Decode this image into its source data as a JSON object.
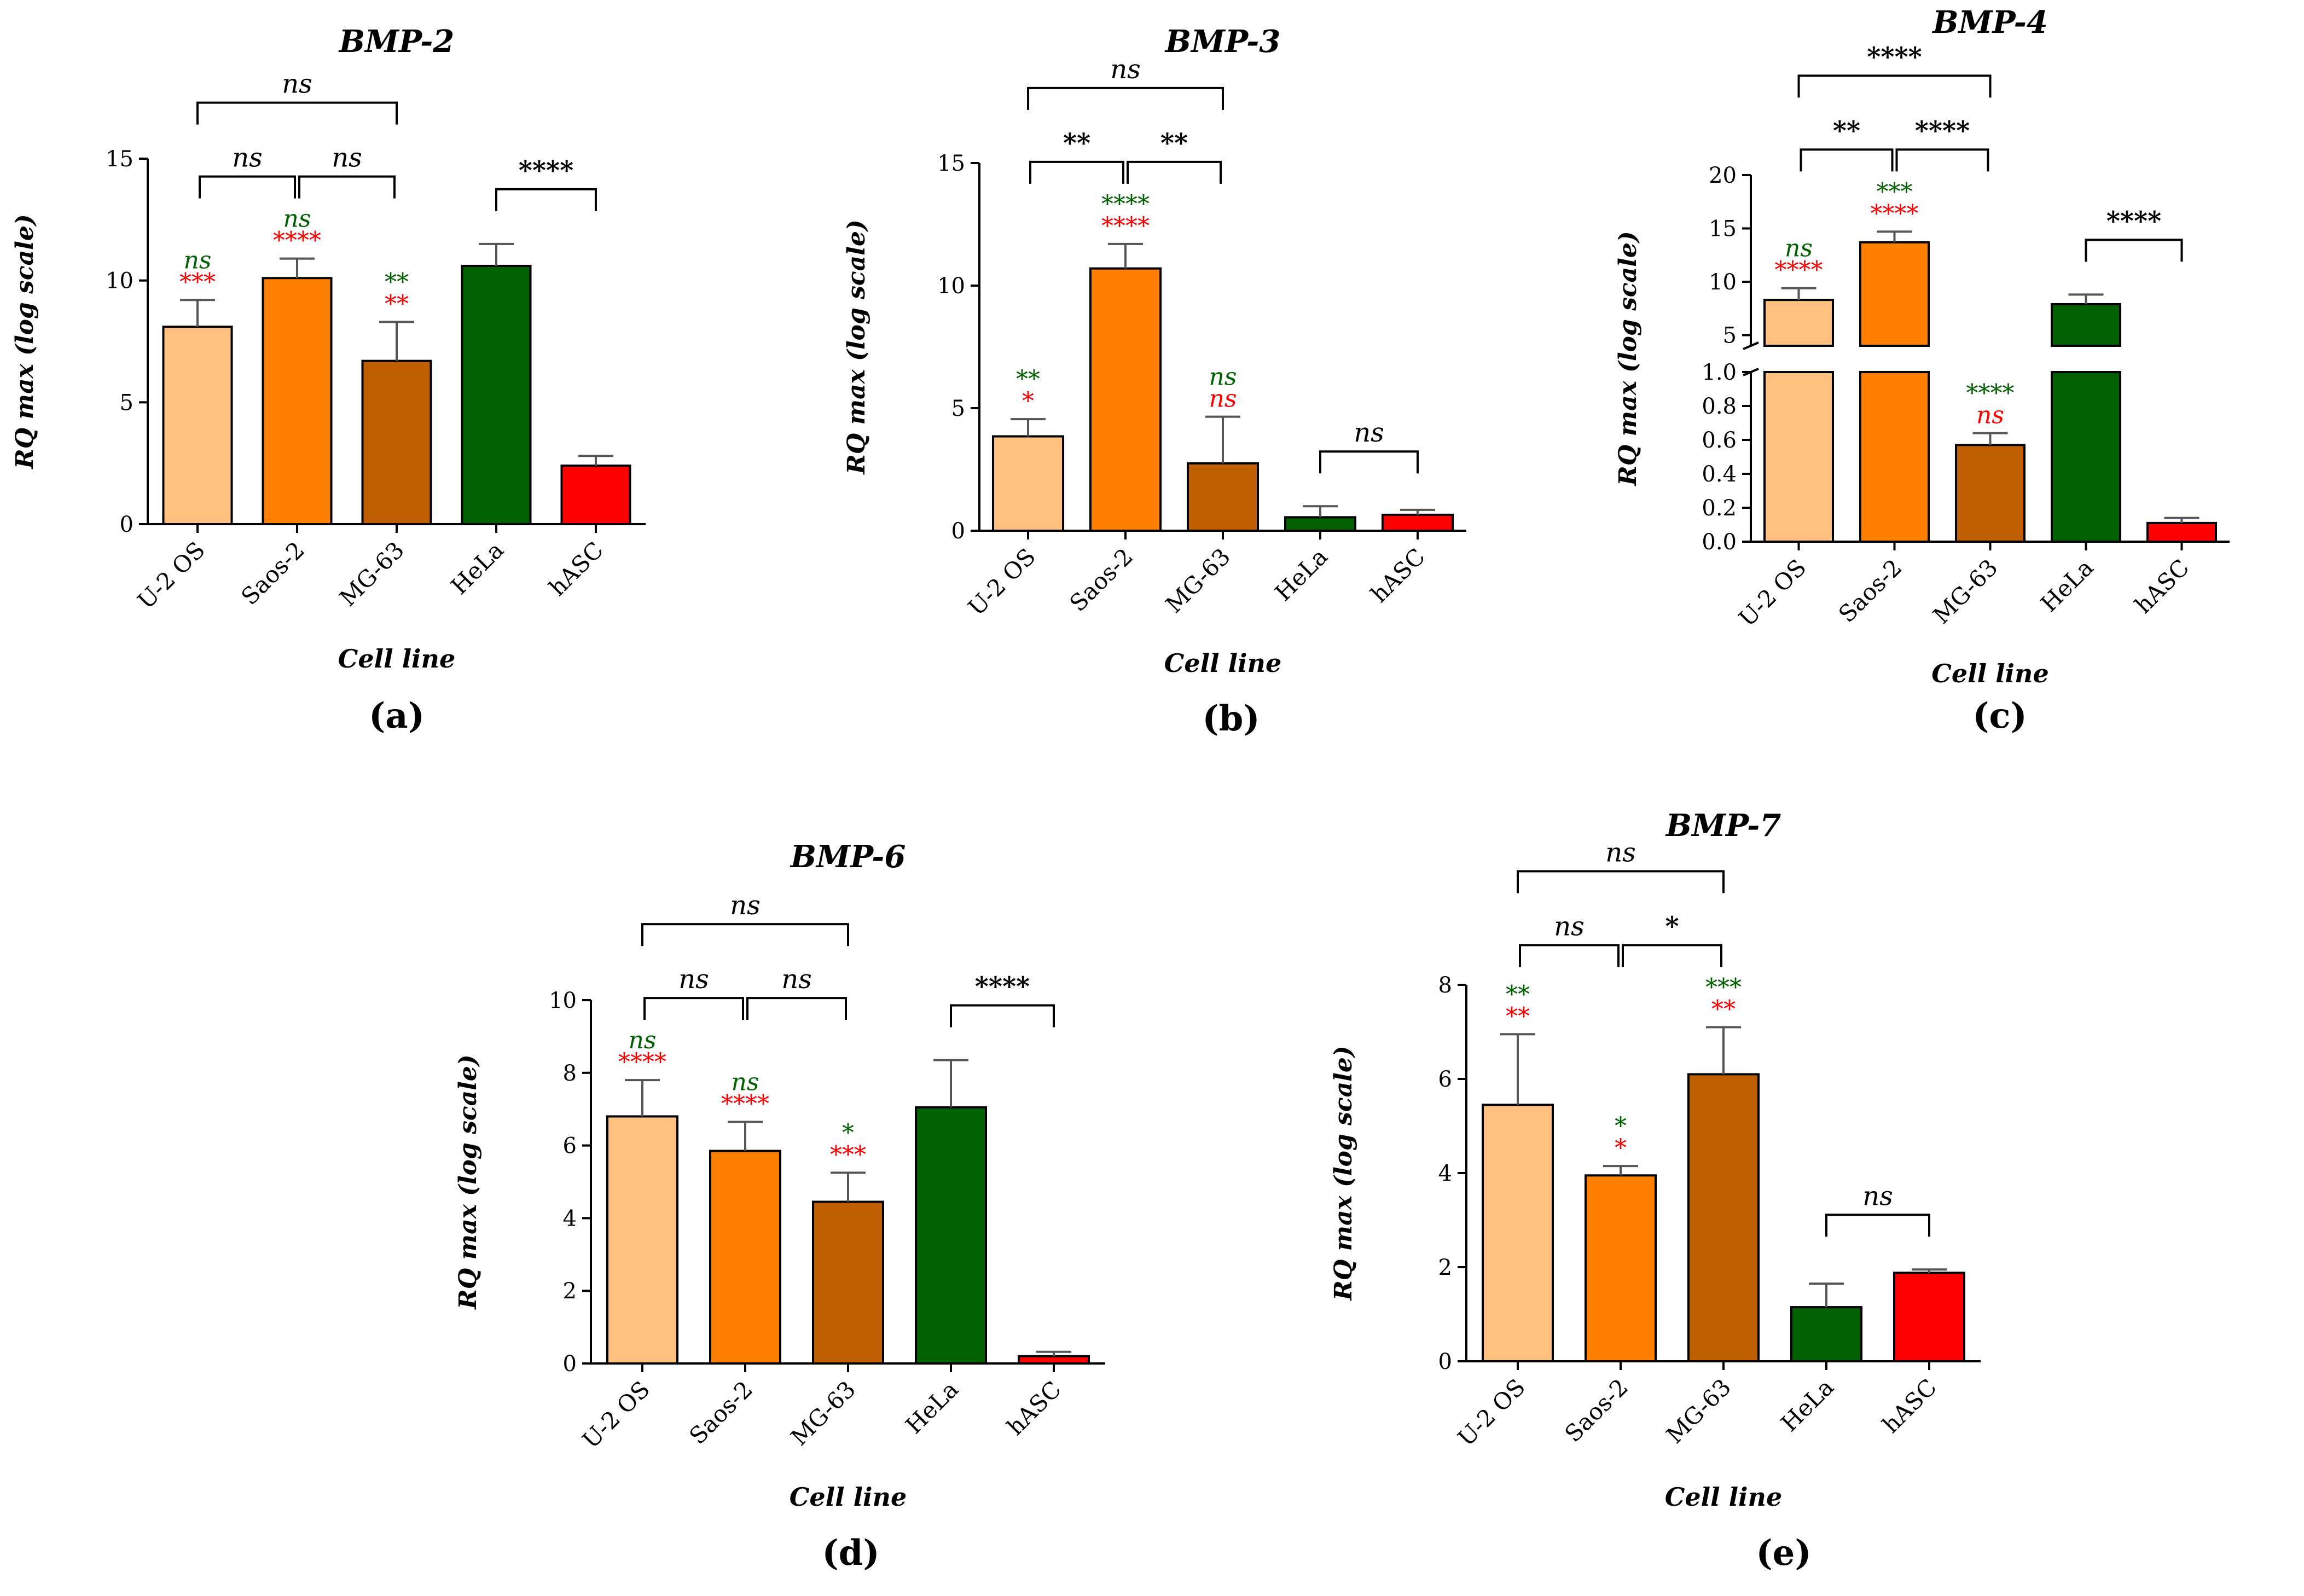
{
  "figure": {
    "shared": {
      "ylabel": "RQ max (log scale)",
      "xlabel": "Cell line",
      "categories": [
        "U-2 OS",
        "Saos-2",
        "MG-63",
        "HeLa",
        "hASC"
      ]
    },
    "colors": {
      "bar_fills": [
        "#FFC080",
        "#FF8000",
        "#BF5F00",
        "#005F00",
        "#FF0000"
      ],
      "sig_green": "#006100",
      "sig_red": "#FF0000",
      "ink": "#000000"
    }
  },
  "chart_data": [
    {
      "panel": "(a)",
      "type": "bar",
      "title": "BMP-2",
      "xlabel": "Cell line",
      "ylabel": "RQ max (log scale)",
      "categories": [
        "U-2 OS",
        "Saos-2",
        "MG-63",
        "HeLa",
        "hASC"
      ],
      "values": [
        8.1,
        10.1,
        6.7,
        10.6,
        2.4
      ],
      "errors": [
        1.1,
        0.8,
        1.6,
        0.9,
        0.4
      ],
      "ylim": [
        0,
        15
      ],
      "yticks": [
        0,
        5,
        10,
        15
      ],
      "bar_annotations": [
        {
          "green": "ns",
          "red": "***"
        },
        {
          "green": "ns",
          "red": "****"
        },
        {
          "green": "**",
          "red": "**"
        },
        {
          "green": "",
          "red": ""
        },
        {
          "green": "",
          "red": ""
        }
      ],
      "brackets": [
        {
          "from": 0,
          "to": 1,
          "label": "ns",
          "level": 1
        },
        {
          "from": 1,
          "to": 2,
          "label": "ns",
          "level": 1
        },
        {
          "from": 0,
          "to": 2,
          "label": "ns",
          "level": 2
        },
        {
          "from": 3,
          "to": 4,
          "label": "****",
          "level": 0
        }
      ]
    },
    {
      "panel": "(b)",
      "type": "bar",
      "title": "BMP-3",
      "xlabel": "Cell line",
      "ylabel": "RQ max (log scale)",
      "categories": [
        "U-2 OS",
        "Saos-2",
        "MG-63",
        "HeLa",
        "hASC"
      ],
      "values": [
        3.85,
        10.7,
        2.75,
        0.55,
        0.65
      ],
      "errors": [
        0.7,
        1.0,
        1.9,
        0.45,
        0.2
      ],
      "ylim": [
        0,
        15
      ],
      "yticks": [
        0,
        5,
        10,
        15
      ],
      "bar_annotations": [
        {
          "green": "**",
          "red": "*"
        },
        {
          "green": "****",
          "red": "****"
        },
        {
          "green": "ns",
          "red": "ns"
        },
        {
          "green": "",
          "red": ""
        },
        {
          "green": "",
          "red": ""
        }
      ],
      "brackets": [
        {
          "from": 0,
          "to": 1,
          "label": "**",
          "level": 1
        },
        {
          "from": 1,
          "to": 2,
          "label": "**",
          "level": 1
        },
        {
          "from": 0,
          "to": 2,
          "label": "ns",
          "level": 2
        },
        {
          "from": 3,
          "to": 4,
          "label": "ns",
          "level": 0
        }
      ]
    },
    {
      "panel": "(c)",
      "type": "bar",
      "title": "BMP-4",
      "xlabel": "Cell line",
      "ylabel": "RQ max (log scale)",
      "categories": [
        "U-2 OS",
        "Saos-2",
        "MG-63",
        "HeLa",
        "hASC"
      ],
      "values": [
        8.3,
        13.7,
        0.57,
        7.9,
        0.11
      ],
      "errors": [
        1.1,
        1.0,
        0.07,
        0.9,
        0.03
      ],
      "broken_axis": {
        "lower_range": [
          0,
          1.0
        ],
        "upper_range": [
          4,
          20
        ]
      },
      "yticks_lower": [
        0.0,
        0.2,
        0.4,
        0.6,
        0.8,
        1.0
      ],
      "yticks_upper": [
        5,
        10,
        15,
        20
      ],
      "bar_annotations": [
        {
          "green": "ns",
          "red": "****"
        },
        {
          "green": "***",
          "red": "****"
        },
        {
          "green": "****",
          "red": "ns"
        },
        {
          "green": "",
          "red": ""
        },
        {
          "green": "",
          "red": ""
        }
      ],
      "brackets": [
        {
          "from": 0,
          "to": 1,
          "label": "**",
          "level": 1
        },
        {
          "from": 1,
          "to": 2,
          "label": "****",
          "level": 1
        },
        {
          "from": 0,
          "to": 2,
          "label": "****",
          "level": 2
        },
        {
          "from": 3,
          "to": 4,
          "label": "****",
          "level": 0
        }
      ]
    },
    {
      "panel": "(d)",
      "type": "bar",
      "title": "BMP-6",
      "xlabel": "Cell line",
      "ylabel": "RQ max (log scale)",
      "categories": [
        "U-2 OS",
        "Saos-2",
        "MG-63",
        "HeLa",
        "hASC"
      ],
      "values": [
        6.8,
        5.85,
        4.45,
        7.05,
        0.2
      ],
      "errors": [
        1.0,
        0.8,
        0.8,
        1.3,
        0.12
      ],
      "ylim": [
        0,
        10
      ],
      "yticks": [
        0,
        2,
        4,
        6,
        8,
        10
      ],
      "bar_annotations": [
        {
          "green": "ns",
          "red": "****"
        },
        {
          "green": "ns",
          "red": "****"
        },
        {
          "green": "*",
          "red": "***"
        },
        {
          "green": "",
          "red": ""
        },
        {
          "green": "",
          "red": ""
        }
      ],
      "brackets": [
        {
          "from": 0,
          "to": 1,
          "label": "ns",
          "level": 1
        },
        {
          "from": 1,
          "to": 2,
          "label": "ns",
          "level": 1
        },
        {
          "from": 0,
          "to": 2,
          "label": "ns",
          "level": 2
        },
        {
          "from": 3,
          "to": 4,
          "label": "****",
          "level": 0
        }
      ]
    },
    {
      "panel": "(e)",
      "type": "bar",
      "title": "BMP-7",
      "xlabel": "Cell line",
      "ylabel": "RQ max (log scale)",
      "categories": [
        "U-2 OS",
        "Saos-2",
        "MG-63",
        "HeLa",
        "hASC"
      ],
      "values": [
        5.45,
        3.95,
        6.1,
        1.15,
        1.88
      ],
      "errors": [
        1.5,
        0.2,
        1.0,
        0.5,
        0.07
      ],
      "ylim": [
        0,
        8
      ],
      "yticks": [
        0,
        2,
        4,
        6,
        8
      ],
      "bar_annotations": [
        {
          "green": "**",
          "red": "**"
        },
        {
          "green": "*",
          "red": "*"
        },
        {
          "green": "***",
          "red": "**"
        },
        {
          "green": "",
          "red": ""
        },
        {
          "green": "",
          "red": ""
        }
      ],
      "brackets": [
        {
          "from": 0,
          "to": 1,
          "label": "ns",
          "level": 1
        },
        {
          "from": 1,
          "to": 2,
          "label": "*",
          "level": 1
        },
        {
          "from": 0,
          "to": 2,
          "label": "ns",
          "level": 2
        },
        {
          "from": 3,
          "to": 4,
          "label": "ns",
          "level": 0
        }
      ]
    }
  ]
}
